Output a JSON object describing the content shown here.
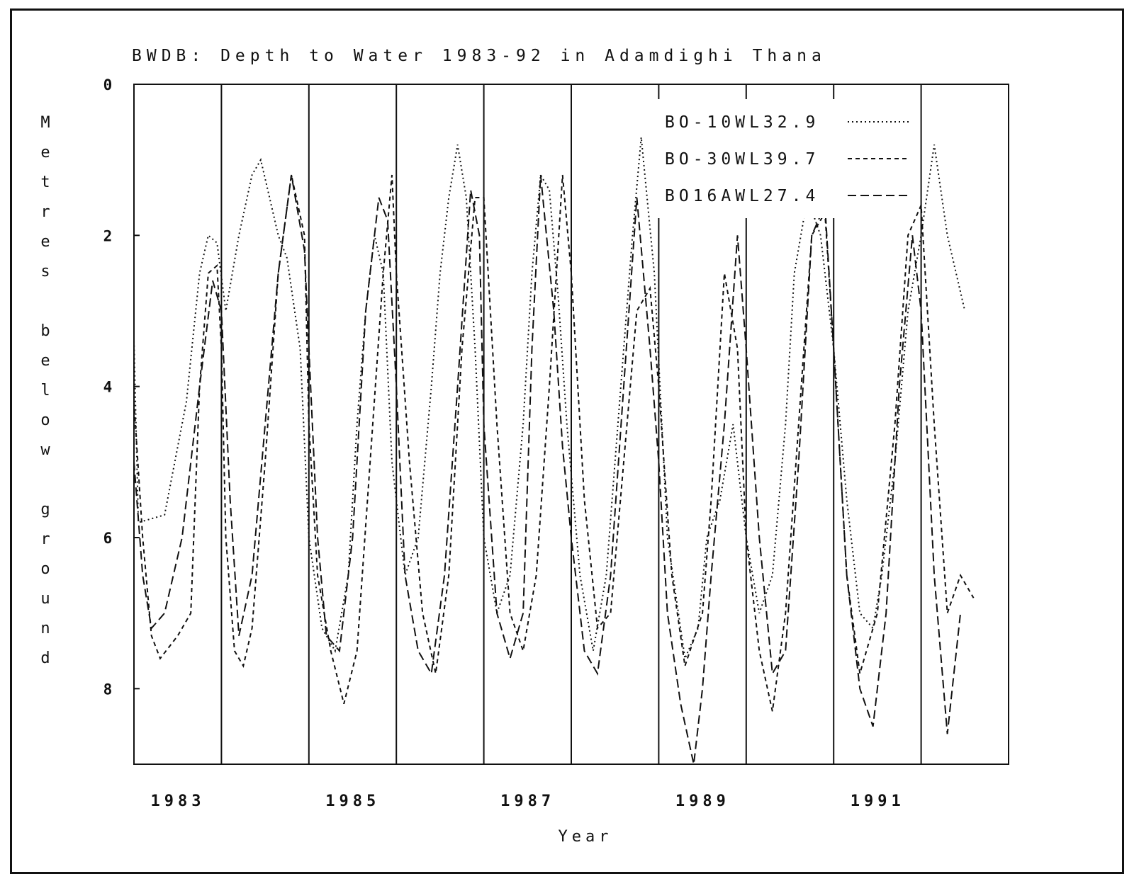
{
  "chart_data": {
    "type": "line",
    "title": "BWDB: Depth to Water 1983-92 in Adamdighi Thana",
    "xlabel": "Year",
    "ylabel": "Metres below ground",
    "xlim": [
      1983.0,
      1993.0
    ],
    "ylim": [
      9.0,
      0.0
    ],
    "y_inverted": true,
    "x_ticks": [
      "1983",
      "1985",
      "1987",
      "1989",
      "1991"
    ],
    "y_ticks": [
      "0",
      "2",
      "4",
      "6",
      "8"
    ],
    "legend_position": "top-right",
    "grid": false,
    "vertical_year_lines": [
      1984,
      1985,
      1986,
      1987,
      1988,
      1989,
      1990,
      1991,
      1992
    ],
    "series": [
      {
        "name": "BO-10WL32.9",
        "style": "dotted",
        "x": [
          1983.0,
          1983.05,
          1983.35,
          1983.6,
          1983.75,
          1983.85,
          1983.95,
          1984.05,
          1984.2,
          1984.35,
          1984.45,
          1984.55,
          1984.65,
          1984.75,
          1984.9,
          1985.0,
          1985.15,
          1985.3,
          1985.45,
          1985.55,
          1985.65,
          1985.75,
          1985.85,
          1985.95,
          1986.1,
          1986.25,
          1986.4,
          1986.5,
          1986.6,
          1986.7,
          1986.8,
          1986.9,
          1987.0,
          1987.15,
          1987.3,
          1987.45,
          1987.55,
          1987.65,
          1987.75,
          1987.85,
          1987.95,
          1988.1,
          1988.25,
          1988.4,
          1988.5,
          1988.6,
          1988.7,
          1988.8,
          1988.95,
          1989.1,
          1989.3,
          1989.45,
          1989.55,
          1989.7,
          1989.85,
          1990.0,
          1990.15,
          1990.3,
          1990.45,
          1990.55,
          1990.7,
          1990.85,
          1991.0,
          1991.15,
          1991.3,
          1991.45,
          1991.55,
          1991.7,
          1991.85,
          1992.0,
          1992.15,
          1992.3,
          1992.5
        ],
        "y": [
          3.4,
          5.8,
          5.7,
          4.2,
          2.5,
          2.0,
          2.1,
          3.0,
          2.0,
          1.2,
          1.0,
          1.5,
          2.0,
          2.3,
          3.5,
          6.0,
          7.2,
          7.5,
          6.5,
          4.5,
          3.0,
          2.0,
          2.5,
          5.0,
          6.5,
          6.0,
          4.0,
          2.5,
          1.5,
          0.8,
          1.5,
          3.5,
          6.0,
          7.0,
          6.5,
          4.5,
          2.5,
          1.2,
          1.4,
          2.8,
          4.5,
          6.5,
          7.5,
          6.5,
          5.0,
          3.5,
          2.0,
          0.7,
          2.5,
          6.0,
          7.6,
          7.2,
          6.0,
          5.5,
          4.5,
          6.0,
          7.0,
          6.5,
          4.5,
          2.5,
          1.5,
          2.0,
          3.5,
          5.5,
          7.0,
          7.2,
          6.5,
          5.0,
          3.0,
          2.0,
          0.8,
          2.0,
          3.0
        ]
      },
      {
        "name": "BO-30WL39.7",
        "style": "short-dash",
        "x": [
          1983.0,
          1983.1,
          1983.2,
          1983.3,
          1983.5,
          1983.65,
          1983.75,
          1983.85,
          1983.95,
          1984.0,
          1984.05,
          1984.15,
          1984.25,
          1984.35,
          1984.5,
          1984.65,
          1984.8,
          1984.95,
          1985.0,
          1985.1,
          1985.25,
          1985.4,
          1985.55,
          1985.7,
          1985.85,
          1985.95,
          1986.0,
          1986.15,
          1986.3,
          1986.45,
          1986.6,
          1986.75,
          1986.9,
          1987.0,
          1987.15,
          1987.3,
          1987.45,
          1987.6,
          1987.75,
          1987.9,
          1988.0,
          1988.15,
          1988.3,
          1988.45,
          1988.6,
          1988.75,
          1988.9,
          1989.0,
          1989.15,
          1989.3,
          1989.5,
          1989.6,
          1989.75,
          1989.9,
          1990.0,
          1990.15,
          1990.3,
          1990.45,
          1990.6,
          1990.75,
          1990.9,
          1991.0,
          1991.15,
          1991.3,
          1991.5,
          1991.7,
          1991.85,
          1992.0,
          1992.15,
          1992.3,
          1992.45,
          1992.6
        ],
        "y": [
          4.2,
          6.0,
          7.3,
          7.6,
          7.3,
          7.0,
          4.0,
          2.5,
          2.4,
          3.5,
          6.0,
          7.5,
          7.7,
          7.2,
          5.0,
          2.5,
          1.2,
          2.0,
          4.5,
          6.5,
          7.5,
          8.2,
          7.5,
          5.0,
          2.5,
          1.2,
          2.5,
          5.0,
          7.0,
          7.8,
          6.5,
          3.5,
          1.5,
          1.5,
          4.5,
          7.0,
          7.5,
          6.5,
          4.0,
          1.2,
          2.5,
          5.5,
          7.2,
          7.0,
          5.0,
          3.0,
          2.7,
          4.0,
          6.5,
          7.7,
          7.0,
          5.5,
          2.5,
          3.5,
          6.0,
          7.5,
          8.3,
          7.0,
          4.5,
          2.0,
          1.7,
          3.5,
          6.5,
          7.8,
          7.0,
          4.5,
          2.0,
          1.6,
          4.5,
          7.0,
          6.5,
          6.8
        ]
      },
      {
        "name": "BO16AWL27.4",
        "style": "long-dash",
        "x": [
          1983.0,
          1983.1,
          1983.2,
          1983.35,
          1983.55,
          1983.75,
          1983.9,
          1984.0,
          1984.1,
          1984.2,
          1984.35,
          1984.5,
          1984.65,
          1984.8,
          1984.95,
          1985.0,
          1985.1,
          1985.2,
          1985.35,
          1985.5,
          1985.65,
          1985.8,
          1985.9,
          1986.0,
          1986.1,
          1986.25,
          1986.4,
          1986.55,
          1986.7,
          1986.85,
          1986.95,
          1987.0,
          1987.15,
          1987.3,
          1987.45,
          1987.55,
          1987.65,
          1987.8,
          1987.9,
          1988.0,
          1988.15,
          1988.3,
          1988.45,
          1988.6,
          1988.75,
          1988.9,
          1989.0,
          1989.1,
          1989.25,
          1989.4,
          1989.5,
          1989.6,
          1989.75,
          1989.9,
          1990.0,
          1990.15,
          1990.3,
          1990.45,
          1990.6,
          1990.75,
          1990.9,
          1991.0,
          1991.15,
          1991.3,
          1991.45,
          1991.6,
          1991.75,
          1991.9,
          1992.0,
          1992.15,
          1992.3,
          1992.45
        ],
        "y": [
          5.0,
          6.5,
          7.2,
          7.0,
          6.0,
          4.0,
          2.6,
          3.0,
          5.5,
          7.3,
          6.5,
          4.5,
          2.5,
          1.2,
          2.2,
          3.5,
          6.0,
          7.3,
          7.5,
          6.0,
          3.0,
          1.5,
          1.8,
          4.0,
          6.5,
          7.5,
          7.8,
          6.5,
          4.0,
          1.4,
          2.0,
          4.5,
          7.0,
          7.6,
          7.0,
          3.5,
          1.2,
          3.0,
          4.8,
          6.0,
          7.5,
          7.8,
          6.5,
          4.0,
          1.5,
          3.5,
          5.0,
          7.0,
          8.2,
          9.0,
          8.0,
          6.5,
          4.5,
          2.0,
          3.5,
          6.0,
          7.8,
          7.5,
          5.0,
          2.0,
          1.6,
          3.5,
          6.5,
          8.0,
          8.5,
          7.0,
          4.0,
          2.0,
          3.0,
          6.5,
          8.6,
          7.0
        ]
      }
    ]
  }
}
